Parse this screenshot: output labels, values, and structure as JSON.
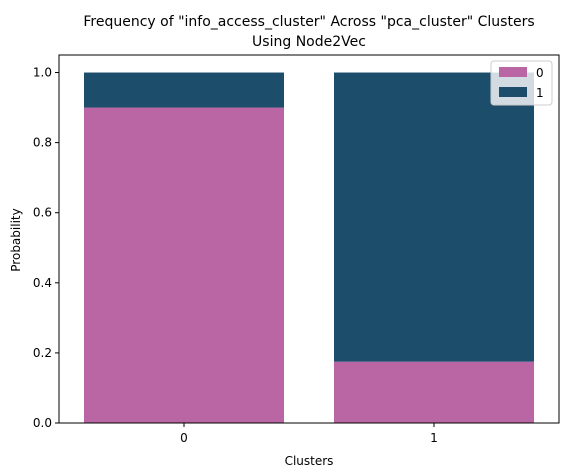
{
  "chart_data": {
    "type": "bar",
    "stacked": true,
    "title": "Frequency of \"info_access_cluster\" Across \"pca_cluster\" Clusters",
    "subtitle": "Using Node2Vec",
    "xlabel": "Clusters",
    "ylabel": "Probability",
    "categories": [
      "0",
      "1"
    ],
    "ylim": [
      0,
      1.05
    ],
    "yticks": [
      "0.0",
      "0.2",
      "0.4",
      "0.6",
      "0.8",
      "1.0"
    ],
    "series": [
      {
        "name": "0",
        "color": "#bb66a4",
        "values": [
          0.9,
          0.175
        ]
      },
      {
        "name": "1",
        "color": "#1c4e6b",
        "values": [
          0.1,
          0.825
        ]
      }
    ],
    "legend_position": "top-right",
    "grid": false
  }
}
